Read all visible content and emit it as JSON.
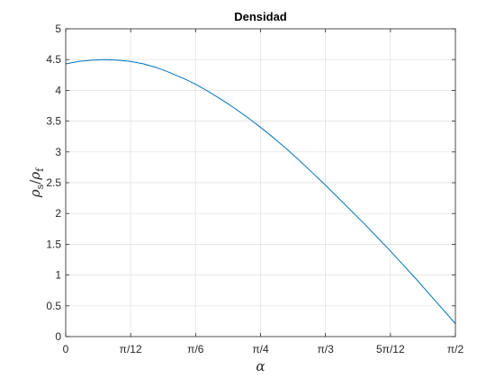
{
  "chart_data": {
    "type": "line",
    "title": "Densidad",
    "xlabel": "α",
    "ylabel": {
      "main": "ρ",
      "sub1": "s",
      "slash": "/",
      "main2": "ρ",
      "sub2": "f"
    },
    "xlim": [
      0,
      1.5708
    ],
    "ylim": [
      0,
      5
    ],
    "grid": true,
    "x_ticks": [
      {
        "value": 0,
        "label": "0"
      },
      {
        "value": 0.2618,
        "label": "π/12"
      },
      {
        "value": 0.5236,
        "label": "π/6"
      },
      {
        "value": 0.7854,
        "label": "π/4"
      },
      {
        "value": 1.0472,
        "label": "π/3"
      },
      {
        "value": 1.309,
        "label": "5π/12"
      },
      {
        "value": 1.5708,
        "label": "π/2"
      }
    ],
    "y_ticks": [
      {
        "value": 0,
        "label": "0"
      },
      {
        "value": 0.5,
        "label": "0.5"
      },
      {
        "value": 1,
        "label": "1"
      },
      {
        "value": 1.5,
        "label": "1.5"
      },
      {
        "value": 2,
        "label": "2"
      },
      {
        "value": 2.5,
        "label": "2.5"
      },
      {
        "value": 3,
        "label": "3"
      },
      {
        "value": 3.5,
        "label": "3.5"
      },
      {
        "value": 4,
        "label": "4"
      },
      {
        "value": 4.5,
        "label": "4.5"
      },
      {
        "value": 5,
        "label": "5"
      }
    ],
    "series": [
      {
        "color": "#0072bd",
        "x": [
          0,
          0.0524,
          0.1047,
          0.1571,
          0.2094,
          0.2618,
          0.3142,
          0.3665,
          0.4189,
          0.4712,
          0.5236,
          0.576,
          0.6283,
          0.6807,
          0.733,
          0.7854,
          0.8378,
          0.8901,
          0.9425,
          0.9948,
          1.0472,
          1.0996,
          1.1519,
          1.2043,
          1.2566,
          1.309,
          1.3614,
          1.4137,
          1.4661,
          1.5184,
          1.5708
        ],
        "y": [
          4.43,
          4.47,
          4.49,
          4.5,
          4.49,
          4.47,
          4.43,
          4.37,
          4.29,
          4.2,
          4.1,
          3.98,
          3.85,
          3.71,
          3.56,
          3.4,
          3.23,
          3.05,
          2.86,
          2.66,
          2.46,
          2.25,
          2.04,
          1.83,
          1.61,
          1.39,
          1.16,
          0.93,
          0.69,
          0.45,
          0.21
        ]
      }
    ]
  }
}
